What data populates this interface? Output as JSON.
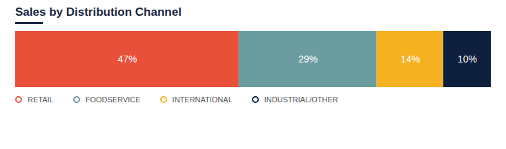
{
  "chart_data": {
    "type": "bar",
    "title": "Sales by Distribution Channel",
    "orientation": "horizontal",
    "stacked": true,
    "data_labels": true,
    "tick_labels": false,
    "grid": false,
    "legend": "bottom",
    "categories": [
      null
    ],
    "xlim": [
      0,
      100
    ],
    "series": [
      {
        "name": "RETAIL",
        "color": "#e8503a",
        "values": [
          47
        ],
        "value_labels": [
          "47%"
        ]
      },
      {
        "name": "FOODSERVICE",
        "color": "#6b9ca0",
        "values": [
          29
        ],
        "value_labels": [
          "29%"
        ]
      },
      {
        "name": "INTERNATIONAL",
        "color": "#f5b120",
        "values": [
          14
        ],
        "value_labels": [
          "14%"
        ]
      },
      {
        "name": "INDUSTRIAL/OTHER",
        "color": "#0d1f3c",
        "values": [
          10
        ],
        "value_labels": [
          "10%"
        ]
      }
    ]
  }
}
